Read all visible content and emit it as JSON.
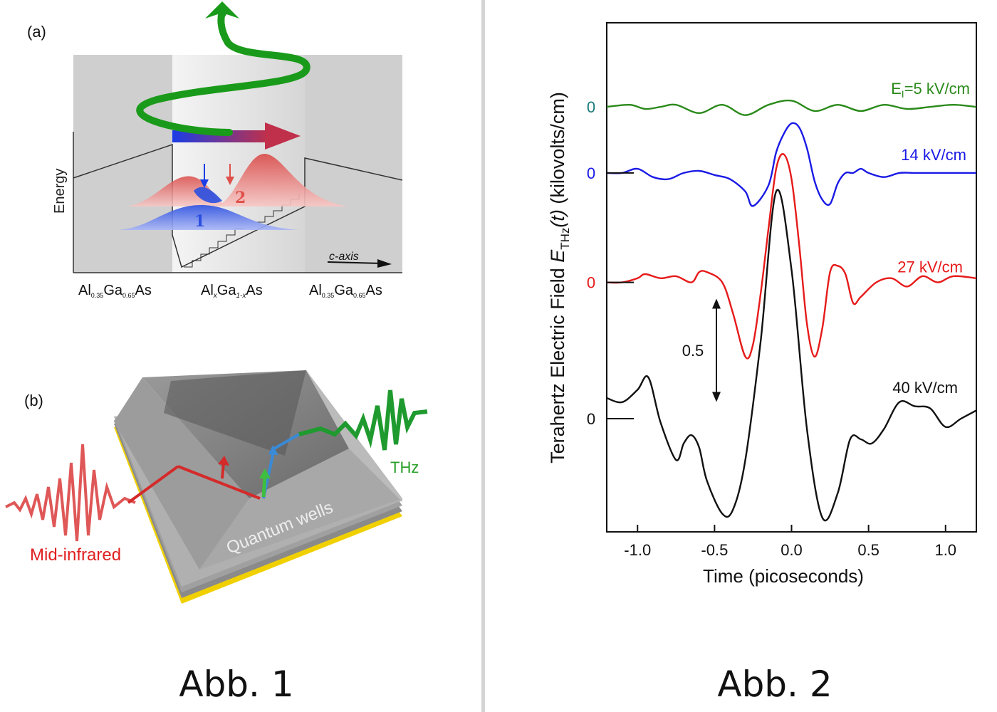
{
  "figure1": {
    "caption": "Abb. 1",
    "panel_a": {
      "label": "(a)",
      "ylabel": "Energy",
      "axis_label": "c-axis",
      "level1": "1",
      "level2": "2",
      "materials": [
        {
          "base": "Al",
          "sub1": "0.35",
          "mid": "Ga",
          "sub2": "0.65",
          "end": "As"
        },
        {
          "base": "Al",
          "sub1": "x",
          "mid": "Ga",
          "sub2": "1-x",
          "end": "As"
        },
        {
          "base": "Al",
          "sub1": "0.35",
          "mid": "Ga",
          "sub2": "0.65",
          "end": "As"
        }
      ],
      "colors": {
        "beam": "#1a9a1a",
        "level1": "#2b4fe0",
        "level2": "#e0504a"
      }
    },
    "panel_b": {
      "label": "(b)",
      "mid_infrared": "Mid-infrared",
      "quantum_wells": "Quantum wells",
      "thz": "THz"
    }
  },
  "figure2": {
    "caption": "Abb. 2",
    "chart_data": {
      "type": "line",
      "xlabel": "Time (picoseconds)",
      "ylabel_main": "Terahertz Electric Field ",
      "ylabel_symbol": "E",
      "ylabel_sub": "THz",
      "ylabel_arg": "(t)",
      "ylabel_unit": " (kilovolts/cm)",
      "xlim": [
        -1.2,
        1.2
      ],
      "xticks": [
        "-1.0",
        "-0.5",
        "0.0",
        "0.5",
        "1.0"
      ],
      "xtick_values": [
        -1.0,
        -0.5,
        0.0,
        0.5,
        1.0
      ],
      "scale_bar": "0.5",
      "scale_bar_value": 0.5,
      "grid": false,
      "series": [
        {
          "name": "E",
          "name_sub": "I",
          "name_rest": "=5 kV/cm",
          "zero_label": "0",
          "color": "#2a8a1a",
          "zero_label_color": "#1a7a7a",
          "offset": 1.51,
          "x": [
            -1.2,
            -1.05,
            -0.95,
            -0.85,
            -0.75,
            -0.6,
            -0.45,
            -0.3,
            -0.15,
            0.0,
            0.15,
            0.3,
            0.45,
            0.6,
            0.75,
            0.9,
            1.05,
            1.2
          ],
          "y": [
            0.0,
            0.01,
            -0.01,
            0.0,
            0.01,
            -0.03,
            0.01,
            -0.04,
            0.01,
            0.03,
            -0.02,
            0.01,
            -0.02,
            0.01,
            -0.01,
            0.0,
            0.01,
            0.0
          ]
        },
        {
          "name": "14 kV/cm",
          "zero_label": "0",
          "color": "#1a1ae6",
          "zero_label_color": "#1a1ae6",
          "offset": 1.19,
          "x": [
            -1.2,
            -1.1,
            -1.0,
            -0.9,
            -0.8,
            -0.7,
            -0.6,
            -0.5,
            -0.4,
            -0.3,
            -0.25,
            -0.15,
            -0.1,
            -0.05,
            0.0,
            0.05,
            0.1,
            0.15,
            0.2,
            0.25,
            0.3,
            0.35,
            0.4,
            0.45,
            0.5,
            0.6,
            0.7,
            0.8,
            0.9,
            1.0,
            1.1,
            1.2
          ],
          "y": [
            0.0,
            0.0,
            0.02,
            -0.02,
            -0.03,
            0.0,
            0.01,
            -0.01,
            -0.03,
            -0.09,
            -0.16,
            -0.06,
            0.1,
            0.19,
            0.24,
            0.22,
            0.12,
            -0.04,
            -0.13,
            -0.15,
            -0.05,
            0.0,
            0.0,
            0.02,
            0.0,
            -0.02,
            0.0,
            0.0,
            0.0,
            0.0,
            0.0,
            0.0
          ]
        },
        {
          "name": "27 kV/cm",
          "zero_label": "0",
          "color": "#e61a1a",
          "zero_label_color": "#e61a1a",
          "offset": 0.66,
          "x": [
            -1.2,
            -1.1,
            -1.0,
            -0.95,
            -0.85,
            -0.75,
            -0.65,
            -0.6,
            -0.55,
            -0.45,
            -0.38,
            -0.3,
            -0.25,
            -0.2,
            -0.15,
            -0.1,
            -0.05,
            0.0,
            0.05,
            0.1,
            0.15,
            0.2,
            0.25,
            0.3,
            0.35,
            0.4,
            0.45,
            0.55,
            0.65,
            0.75,
            0.85,
            0.95,
            1.05,
            1.2
          ],
          "y": [
            0.0,
            0.0,
            0.02,
            0.04,
            0.02,
            0.03,
            0.0,
            0.05,
            0.05,
            0.0,
            -0.15,
            -0.36,
            -0.3,
            -0.05,
            0.26,
            0.55,
            0.62,
            0.5,
            0.18,
            -0.2,
            -0.36,
            -0.22,
            0.05,
            0.08,
            0.04,
            -0.1,
            -0.07,
            0.0,
            0.02,
            -0.02,
            0.03,
            0.0,
            0.03,
            0.02
          ]
        },
        {
          "name": "40 kV/cm",
          "zero_label": "0",
          "color": "#111111",
          "zero_label_color": "#111111",
          "offset": 0.0,
          "x": [
            -1.2,
            -1.1,
            -1.0,
            -0.93,
            -0.85,
            -0.75,
            -0.7,
            -0.65,
            -0.6,
            -0.55,
            -0.45,
            -0.38,
            -0.3,
            -0.2,
            -0.1,
            0.0,
            0.1,
            0.2,
            0.3,
            0.38,
            0.45,
            0.52,
            0.6,
            0.7,
            0.8,
            0.9,
            1.0,
            1.1,
            1.2
          ],
          "y": [
            0.1,
            0.08,
            0.14,
            0.2,
            -0.02,
            -0.2,
            -0.12,
            -0.08,
            -0.14,
            -0.3,
            -0.46,
            -0.44,
            -0.2,
            0.38,
            1.1,
            0.72,
            -0.05,
            -0.48,
            -0.36,
            -0.1,
            -0.1,
            -0.12,
            -0.05,
            0.08,
            0.06,
            0.05,
            -0.04,
            0.0,
            0.04
          ]
        }
      ]
    }
  }
}
